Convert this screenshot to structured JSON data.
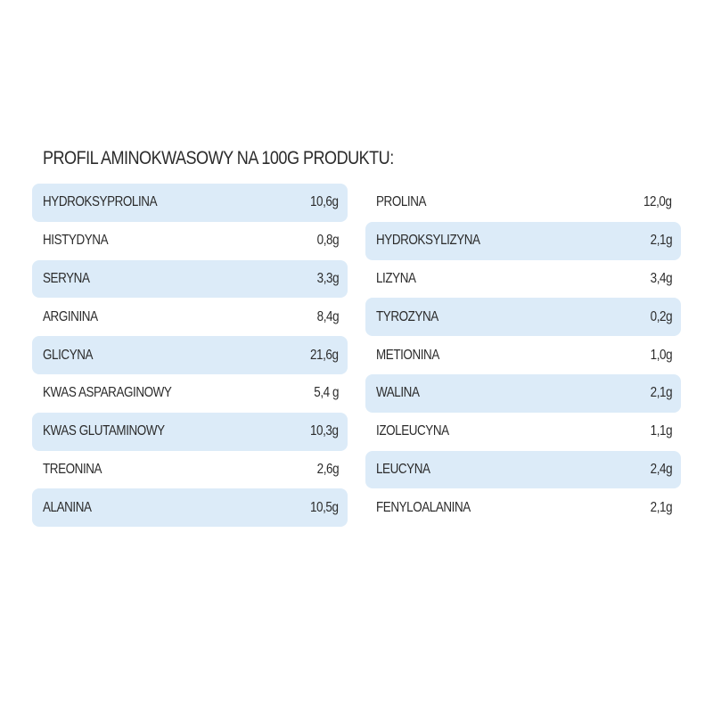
{
  "title": "PROFIL AMINOKWASOWY NA 100G PRODUKTU:",
  "highlight_color": "#dcebf8",
  "left_column": [
    {
      "name": "HYDROKSYPROLINA",
      "value": "10,6g"
    },
    {
      "name": "HISTYDYNA",
      "value": "0,8g"
    },
    {
      "name": "SERYNA",
      "value": "3,3g"
    },
    {
      "name": "ARGININA",
      "value": "8,4g"
    },
    {
      "name": "GLICYNA",
      "value": "21,6g"
    },
    {
      "name": "KWAS ASPARAGINOWY",
      "value": "5,4 g"
    },
    {
      "name": "KWAS GLUTAMINOWY",
      "value": "10,3g"
    },
    {
      "name": "TREONINA",
      "value": "2,6g"
    },
    {
      "name": "ALANINA",
      "value": "10,5g"
    }
  ],
  "right_column": [
    {
      "name": "PROLINA",
      "value": "12,0g"
    },
    {
      "name": "HYDROKSYLIZYNA",
      "value": "2,1g"
    },
    {
      "name": "LIZYNA",
      "value": "3,4g"
    },
    {
      "name": "TYROZYNA",
      "value": "0,2g"
    },
    {
      "name": "METIONINA",
      "value": "1,0g"
    },
    {
      "name": "WALINA",
      "value": "2,1g"
    },
    {
      "name": "IZOLEUCYNA",
      "value": "1,1g"
    },
    {
      "name": "LEUCYNA",
      "value": "2,4g"
    },
    {
      "name": "FENYLOALANINA",
      "value": "2,1g"
    }
  ]
}
